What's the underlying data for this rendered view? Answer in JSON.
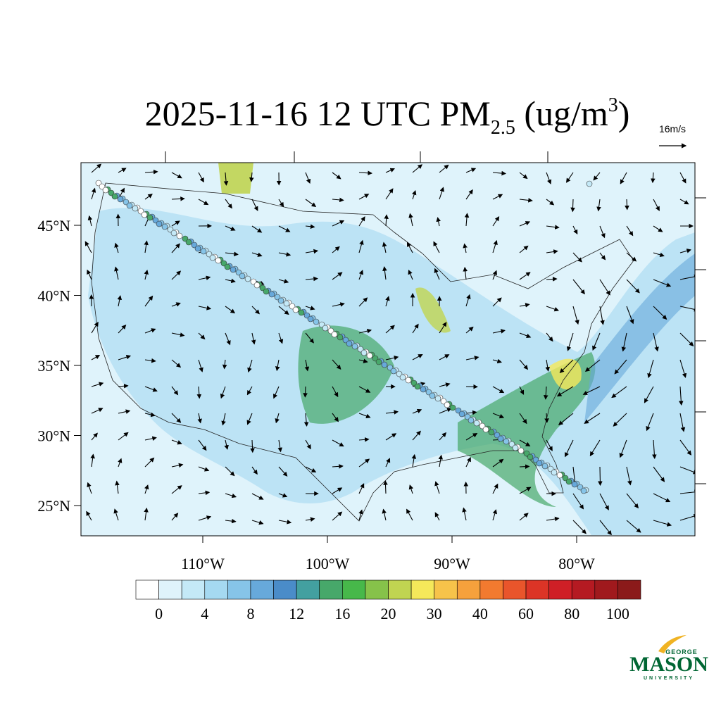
{
  "header": {
    "title": {
      "prefix": "2025-11-16 12 UTC PM",
      "subscript": "2.5",
      "middle": " (ug/m",
      "superscript": "3",
      "suffix": ")"
    }
  },
  "wind_reference": "16m/s",
  "map": {
    "lat_ticks": [
      {
        "value": 45,
        "label": "45°N"
      },
      {
        "value": 40,
        "label": "40°N"
      },
      {
        "value": 35,
        "label": "35°N"
      },
      {
        "value": 30,
        "label": "30°N"
      },
      {
        "value": 25,
        "label": "25°N"
      }
    ],
    "lon_ticks": [
      {
        "value": -110,
        "label": "110°W"
      },
      {
        "value": -100,
        "label": "100°W"
      },
      {
        "value": -90,
        "label": "90°W"
      },
      {
        "value": -80,
        "label": "80°W"
      }
    ]
  },
  "colorbar": {
    "ticks": [
      0,
      4,
      8,
      12,
      16,
      20,
      30,
      40,
      60,
      80,
      100
    ],
    "colors": [
      "#ffffff",
      "#dff3fb",
      "#c4e9f7",
      "#a5d9f1",
      "#86c4e8",
      "#67a9db",
      "#4a8cc9",
      "#43a0a0",
      "#47a86a",
      "#47b84a",
      "#86c24a",
      "#c0d451",
      "#f5e85a",
      "#f7c34a",
      "#f6a13c",
      "#f27a2f",
      "#e9552b",
      "#dc3426",
      "#cf1f26",
      "#b51a22",
      "#a0191d",
      "#8b1a1a"
    ]
  },
  "logo": {
    "line1": "GEORGE",
    "line2": "MASON",
    "line3": "UNIVERSITY"
  }
}
